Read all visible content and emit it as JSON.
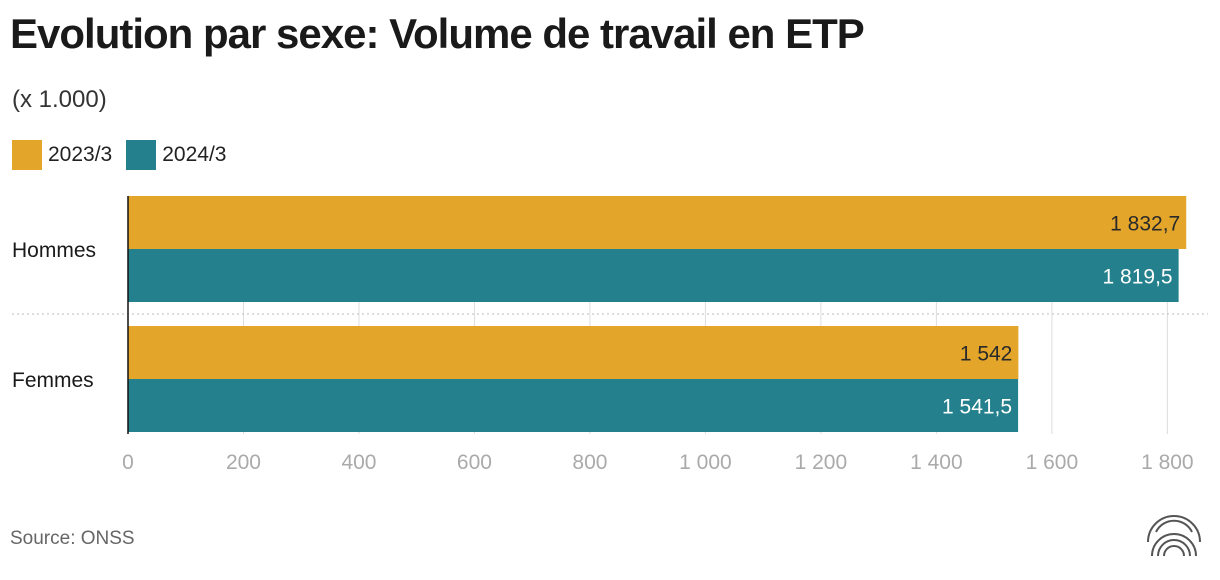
{
  "chart_data": {
    "type": "bar",
    "orientation": "horizontal",
    "title": "Evolution par sexe: Volume de travail en ETP",
    "subtitle": "(x 1.000)",
    "categories": [
      "Hommes",
      "Femmes"
    ],
    "series": [
      {
        "name": "2023/3",
        "color": "#E3A52A",
        "values": [
          1832.7,
          1542
        ],
        "labels": [
          "1 832,7",
          "1 542"
        ]
      },
      {
        "name": "2024/3",
        "color": "#23808C",
        "values": [
          1819.5,
          1541.5
        ],
        "labels": [
          "1 819,5",
          "1 541,5"
        ]
      }
    ],
    "xlim": [
      0,
      1860
    ],
    "xticks": [
      0,
      200,
      400,
      600,
      800,
      1000,
      1200,
      1400,
      1600,
      1800
    ],
    "xtick_labels": [
      "0",
      "200",
      "400",
      "600",
      "800",
      "1 000",
      "1 200",
      "1 400",
      "1 600",
      "1 800"
    ],
    "grid": true,
    "legend_position": "top-left"
  },
  "source": "Source: ONSS",
  "logo_icon": "concentric-arcs-logo"
}
